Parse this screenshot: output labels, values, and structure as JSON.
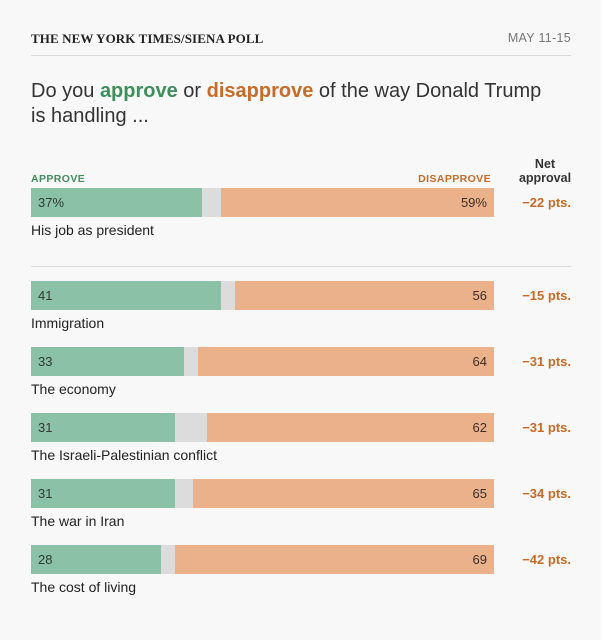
{
  "header": {
    "source": "THE NEW YORK TIMES/SIENA POLL",
    "date": "MAY 11-15"
  },
  "question": {
    "prefix": "Do you ",
    "approve": "approve",
    "or": " or ",
    "disapprove": "disapprove",
    "suffix": " of the way Donald Trump is handling ..."
  },
  "labels": {
    "approve": "APPROVE",
    "disapprove": "DISAPPROVE",
    "net_line1": "Net",
    "net_line2": "approval"
  },
  "colors": {
    "approve": "#8ac1a7",
    "disapprove": "#ebb18a",
    "neutral": "#dcdcdc",
    "approve_text": "#3f8f5d",
    "disapprove_text": "#c96a27"
  },
  "chart_data": {
    "type": "bar",
    "orientation": "horizontal-stacked",
    "categories": [
      "His job as president",
      "Immigration",
      "The economy",
      "The Israeli-Palestinian conflict",
      "The war in Iran",
      "The cost of living"
    ],
    "series": [
      {
        "name": "APPROVE",
        "values": [
          37,
          41,
          33,
          31,
          31,
          28
        ]
      },
      {
        "name": "DISAPPROVE",
        "values": [
          59,
          56,
          64,
          62,
          65,
          69
        ]
      }
    ],
    "approve_labels": [
      "37%",
      "41",
      "33",
      "31",
      "31",
      "28"
    ],
    "disapprove_labels": [
      "59%",
      "56",
      "64",
      "62",
      "65",
      "69"
    ],
    "net_labels": [
      "−22 pts.",
      "−15 pts.",
      "−31 pts.",
      "−31 pts.",
      "−34 pts.",
      "−42 pts."
    ],
    "xlim": [
      0,
      100
    ]
  }
}
